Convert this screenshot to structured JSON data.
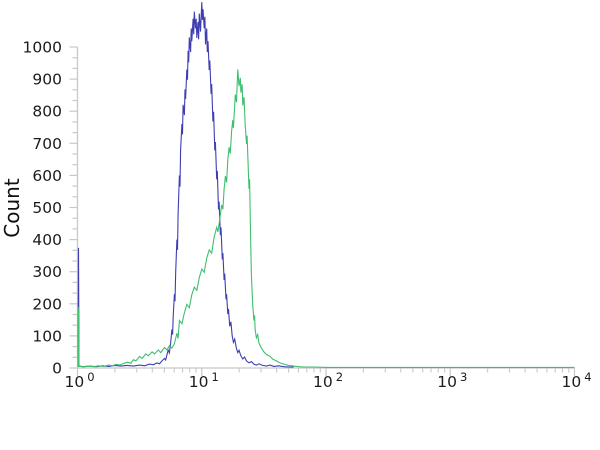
{
  "figure": {
    "background": "#ffffff"
  },
  "chart_data": {
    "type": "line",
    "subtype": "flow-cytometry-histogram-overlay",
    "title": "",
    "xlabel": "",
    "ylabel": "Count",
    "x_scale": "log10",
    "xlim": [
      1,
      10000
    ],
    "ylim": [
      0,
      1000
    ],
    "grid": "off",
    "legend": "none",
    "axis_color": "#c8c8c8",
    "text_color": "#1c1c1c",
    "y_ticks": [
      0,
      100,
      200,
      300,
      400,
      500,
      600,
      700,
      800,
      900,
      1000
    ],
    "y_minor_ticks_between_majors": 2,
    "x_ticks": [
      {
        "base": "10",
        "exp": "0"
      },
      {
        "base": "10",
        "exp": "1"
      },
      {
        "base": "10",
        "exp": "2"
      },
      {
        "base": "10",
        "exp": "3"
      },
      {
        "base": "10",
        "exp": "4"
      }
    ],
    "x_minor_ticks": "log positions 2-9 within each decade",
    "series": [
      {
        "name": "blue-histogram",
        "color": "#3e3eb2",
        "peak_x": 10,
        "peak_count": 1140,
        "origin_spike_count": 374,
        "points_log10x_count": [
          [
            0.005,
            3
          ],
          [
            0.008,
            374
          ],
          [
            0.012,
            6
          ],
          [
            0.05,
            4
          ],
          [
            0.1,
            6
          ],
          [
            0.15,
            4
          ],
          [
            0.2,
            7
          ],
          [
            0.25,
            5
          ],
          [
            0.3,
            8
          ],
          [
            0.35,
            6
          ],
          [
            0.4,
            8
          ],
          [
            0.45,
            6
          ],
          [
            0.5,
            9
          ],
          [
            0.54,
            7
          ],
          [
            0.58,
            12
          ],
          [
            0.61,
            10
          ],
          [
            0.64,
            16
          ],
          [
            0.66,
            13
          ],
          [
            0.68,
            22
          ],
          [
            0.7,
            30
          ],
          [
            0.71,
            25
          ],
          [
            0.72,
            42
          ],
          [
            0.73,
            55
          ],
          [
            0.74,
            47
          ],
          [
            0.75,
            80
          ],
          [
            0.76,
            120
          ],
          [
            0.765,
            104
          ],
          [
            0.77,
            160
          ],
          [
            0.78,
            230
          ],
          [
            0.785,
            208
          ],
          [
            0.79,
            300
          ],
          [
            0.8,
            400
          ],
          [
            0.805,
            368
          ],
          [
            0.81,
            480
          ],
          [
            0.82,
            600
          ],
          [
            0.825,
            565
          ],
          [
            0.83,
            680
          ],
          [
            0.84,
            760
          ],
          [
            0.845,
            728
          ],
          [
            0.85,
            820
          ],
          [
            0.86,
            788
          ],
          [
            0.865,
            868
          ],
          [
            0.87,
            838
          ],
          [
            0.88,
            930
          ],
          [
            0.885,
            898
          ],
          [
            0.89,
            988
          ],
          [
            0.895,
            952
          ],
          [
            0.9,
            1030
          ],
          [
            0.91,
            984
          ],
          [
            0.915,
            1058
          ],
          [
            0.92,
            1018
          ],
          [
            0.93,
            1088
          ],
          [
            0.935,
            1040
          ],
          [
            0.94,
            1110
          ],
          [
            0.95,
            1058
          ],
          [
            0.955,
            1088
          ],
          [
            0.96,
            1028
          ],
          [
            0.97,
            1078
          ],
          [
            0.975,
            1024
          ],
          [
            0.98,
            1104
          ],
          [
            0.99,
            1048
          ],
          [
            1.0,
            1140
          ],
          [
            1.005,
            1084
          ],
          [
            1.01,
            1118
          ],
          [
            1.02,
            1058
          ],
          [
            1.025,
            1094
          ],
          [
            1.03,
            1008
          ],
          [
            1.04,
            1058
          ],
          [
            1.045,
            984
          ],
          [
            1.05,
            1018
          ],
          [
            1.06,
            928
          ],
          [
            1.065,
            958
          ],
          [
            1.075,
            854
          ],
          [
            1.08,
            884
          ],
          [
            1.09,
            768
          ],
          [
            1.095,
            798
          ],
          [
            1.105,
            678
          ],
          [
            1.11,
            704
          ],
          [
            1.12,
            588
          ],
          [
            1.125,
            614
          ],
          [
            1.135,
            494
          ],
          [
            1.14,
            518
          ],
          [
            1.15,
            414
          ],
          [
            1.155,
            438
          ],
          [
            1.165,
            338
          ],
          [
            1.17,
            358
          ],
          [
            1.18,
            274
          ],
          [
            1.185,
            294
          ],
          [
            1.195,
            214
          ],
          [
            1.2,
            230
          ],
          [
            1.21,
            168
          ],
          [
            1.215,
            184
          ],
          [
            1.225,
            130
          ],
          [
            1.235,
            144
          ],
          [
            1.245,
            100
          ],
          [
            1.255,
            80
          ],
          [
            1.265,
            90
          ],
          [
            1.28,
            60
          ],
          [
            1.29,
            48
          ],
          [
            1.3,
            55
          ],
          [
            1.315,
            38
          ],
          [
            1.33,
            28
          ],
          [
            1.345,
            34
          ],
          [
            1.36,
            22
          ],
          [
            1.38,
            16
          ],
          [
            1.4,
            20
          ],
          [
            1.42,
            12
          ],
          [
            1.44,
            9
          ],
          [
            1.46,
            13
          ],
          [
            1.49,
            8
          ],
          [
            1.52,
            6
          ],
          [
            1.55,
            9
          ],
          [
            1.58,
            5
          ],
          [
            1.62,
            7
          ],
          [
            1.66,
            4
          ],
          [
            1.7,
            3
          ],
          [
            1.74,
            3
          ]
        ]
      },
      {
        "name": "green-histogram",
        "color": "#3fbe6f",
        "peak_x": 19.5,
        "peak_count": 930,
        "origin_spike_count": 190,
        "points_log10x_count": [
          [
            0.005,
            3
          ],
          [
            0.008,
            190
          ],
          [
            0.012,
            5
          ],
          [
            0.05,
            4
          ],
          [
            0.09,
            6
          ],
          [
            0.13,
            4
          ],
          [
            0.17,
            7
          ],
          [
            0.21,
            5
          ],
          [
            0.25,
            9
          ],
          [
            0.28,
            7
          ],
          [
            0.31,
            11
          ],
          [
            0.34,
            9
          ],
          [
            0.37,
            14
          ],
          [
            0.4,
            18
          ],
          [
            0.43,
            15
          ],
          [
            0.45,
            26
          ],
          [
            0.47,
            22
          ],
          [
            0.5,
            36
          ],
          [
            0.52,
            30
          ],
          [
            0.55,
            44
          ],
          [
            0.57,
            38
          ],
          [
            0.6,
            50
          ],
          [
            0.62,
            44
          ],
          [
            0.65,
            56
          ],
          [
            0.67,
            48
          ],
          [
            0.7,
            64
          ],
          [
            0.72,
            56
          ],
          [
            0.74,
            70
          ],
          [
            0.76,
            62
          ],
          [
            0.78,
            76
          ],
          [
            0.8,
            108
          ],
          [
            0.81,
            92
          ],
          [
            0.82,
            148
          ],
          [
            0.84,
            138
          ],
          [
            0.86,
            172
          ],
          [
            0.88,
            198
          ],
          [
            0.9,
            188
          ],
          [
            0.92,
            228
          ],
          [
            0.94,
            252
          ],
          [
            0.96,
            242
          ],
          [
            0.98,
            282
          ],
          [
            1.0,
            308
          ],
          [
            1.02,
            298
          ],
          [
            1.04,
            342
          ],
          [
            1.06,
            368
          ],
          [
            1.08,
            358
          ],
          [
            1.1,
            408
          ],
          [
            1.12,
            438
          ],
          [
            1.13,
            424
          ],
          [
            1.15,
            478
          ],
          [
            1.16,
            508
          ],
          [
            1.17,
            494
          ],
          [
            1.18,
            558
          ],
          [
            1.19,
            598
          ],
          [
            1.2,
            578
          ],
          [
            1.21,
            648
          ],
          [
            1.22,
            688
          ],
          [
            1.23,
            668
          ],
          [
            1.24,
            738
          ],
          [
            1.25,
            772
          ],
          [
            1.255,
            748
          ],
          [
            1.265,
            818
          ],
          [
            1.27,
            852
          ],
          [
            1.28,
            828
          ],
          [
            1.285,
            888
          ],
          [
            1.29,
            930
          ],
          [
            1.3,
            878
          ],
          [
            1.31,
            904
          ],
          [
            1.315,
            858
          ],
          [
            1.325,
            884
          ],
          [
            1.33,
            818
          ],
          [
            1.34,
            844
          ],
          [
            1.35,
            758
          ],
          [
            1.36,
            698
          ],
          [
            1.365,
            724
          ],
          [
            1.375,
            618
          ],
          [
            1.38,
            558
          ],
          [
            1.385,
            588
          ],
          [
            1.39,
            478
          ],
          [
            1.395,
            378
          ],
          [
            1.4,
            288
          ],
          [
            1.41,
            198
          ],
          [
            1.42,
            148
          ],
          [
            1.425,
            164
          ],
          [
            1.43,
            118
          ],
          [
            1.44,
            94
          ],
          [
            1.45,
            104
          ],
          [
            1.46,
            78
          ],
          [
            1.48,
            62
          ],
          [
            1.5,
            50
          ],
          [
            1.52,
            42
          ],
          [
            1.55,
            36
          ],
          [
            1.57,
            28
          ],
          [
            1.6,
            22
          ],
          [
            1.63,
            16
          ],
          [
            1.66,
            12
          ],
          [
            1.7,
            8
          ],
          [
            1.74,
            6
          ],
          [
            1.78,
            4
          ],
          [
            1.83,
            3
          ],
          [
            1.9,
            3
          ],
          [
            2.0,
            2
          ],
          [
            2.2,
            2
          ],
          [
            2.5,
            2
          ],
          [
            2.8,
            2
          ],
          [
            3.1,
            2
          ],
          [
            3.4,
            2
          ],
          [
            3.7,
            2
          ],
          [
            4.0,
            2
          ]
        ]
      }
    ]
  }
}
